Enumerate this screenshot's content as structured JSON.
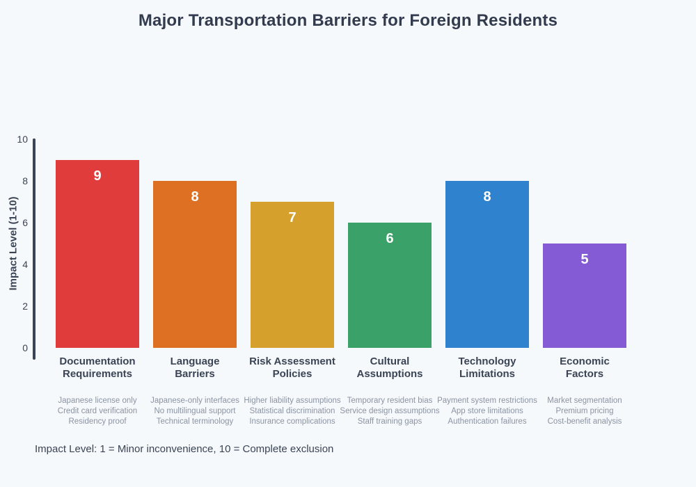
{
  "chart_data": {
    "type": "bar",
    "title": "Major Transportation Barriers for Foreign Residents",
    "ylabel": "Impact Level (1-10)",
    "xlabel": "",
    "ylim": [
      0,
      10
    ],
    "yticks": [
      0,
      2,
      4,
      6,
      8,
      10
    ],
    "grid": false,
    "legend": "none",
    "note": "Impact Level: 1 = Minor inconvenience, 10 = Complete exclusion",
    "categories": [
      "Documentation\nRequirements",
      "Language\nBarriers",
      "Risk Assessment\nPolicies",
      "Cultural\nAssumptions",
      "Technology\nLimitations",
      "Economic\nFactors"
    ],
    "values": [
      9,
      8,
      7,
      6,
      8,
      5
    ],
    "bar_colors": [
      "#e03c3c",
      "#de7023",
      "#d6a02d",
      "#3aa268",
      "#2f82cd",
      "#845bd4"
    ],
    "details": [
      "Japanese license only\nCredit card verification\nResidency proof",
      "Japanese-only interfaces\nNo multilingual support\nTechnical terminology",
      "Higher liability assumptions\nStatistical discrimination\nInsurance complications",
      "Temporary resident bias\nService design assumptions\nStaff training gaps",
      "Payment system restrictions\nApp store limitations\nAuthentication failures",
      "Market segmentation\nPremium pricing\nCost-benefit analysis"
    ],
    "colors": {
      "background": "#f6f9fc",
      "axis": "#3b4457",
      "title_text": "#323c4e",
      "label_text": "#3a4454",
      "muted_text": "#8b93a2",
      "value_label": "#ffffff"
    }
  }
}
